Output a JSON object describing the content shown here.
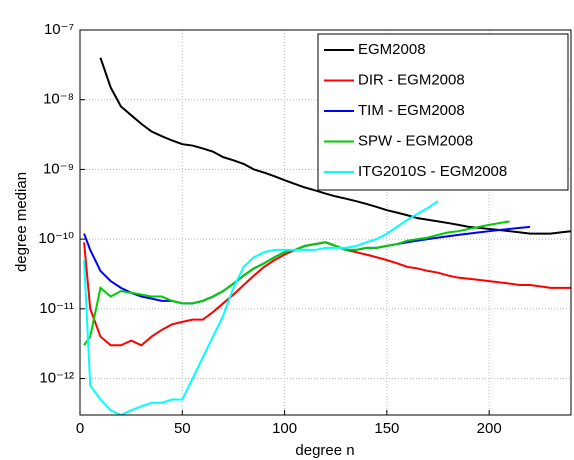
{
  "chart_data": {
    "type": "line",
    "xlabel": "degree n",
    "ylabel": "degree median",
    "yscale": "log",
    "grid": true,
    "legend": "upper right",
    "xlim": [
      0,
      240
    ],
    "xticks": [
      0,
      50,
      100,
      150,
      200
    ],
    "ylim": [
      3e-13,
      1e-07
    ],
    "yticks": [
      {
        "value": 1e-12,
        "label": "10⁻¹²"
      },
      {
        "value": 1e-11,
        "label": "10⁻¹¹"
      },
      {
        "value": 1e-10,
        "label": "10⁻¹⁰"
      },
      {
        "value": 1e-09,
        "label": "10⁻⁹"
      },
      {
        "value": 1e-08,
        "label": "10⁻⁸"
      },
      {
        "value": 1e-07,
        "label": "10⁻⁷"
      }
    ],
    "x": [
      2,
      5,
      10,
      15,
      20,
      25,
      30,
      35,
      40,
      45,
      50,
      55,
      60,
      65,
      70,
      75,
      80,
      85,
      90,
      95,
      100,
      105,
      110,
      115,
      120,
      125,
      130,
      135,
      140,
      145,
      150,
      155,
      160,
      165,
      170,
      175,
      180,
      185,
      190,
      195,
      200,
      205,
      210,
      215,
      220,
      225,
      230,
      235,
      240
    ],
    "series": [
      {
        "name": "EGM2008",
        "color": "#000000",
        "values": [
          null,
          null,
          4e-08,
          1.5e-08,
          8e-09,
          6e-09,
          4.5e-09,
          3.5e-09,
          3e-09,
          2.6e-09,
          2.3e-09,
          2.2e-09,
          2e-09,
          1.8e-09,
          1.5e-09,
          1.35e-09,
          1.2e-09,
          1e-09,
          9e-10,
          8e-10,
          7e-10,
          6.2e-10,
          5.5e-10,
          5e-10,
          4.5e-10,
          4.1e-10,
          3.8e-10,
          3.5e-10,
          3.2e-10,
          2.9e-10,
          2.6e-10,
          2.4e-10,
          2.2e-10,
          2e-10,
          1.9e-10,
          1.8e-10,
          1.7e-10,
          1.6e-10,
          1.5e-10,
          1.45e-10,
          1.4e-10,
          1.35e-10,
          1.3e-10,
          1.25e-10,
          1.2e-10,
          1.2e-10,
          1.2e-10,
          1.25e-10,
          1.3e-10
        ]
      },
      {
        "name": "DIR - EGM2008",
        "color": "#ff0000",
        "values": [
          9e-11,
          1e-11,
          4e-12,
          3e-12,
          3e-12,
          3.5e-12,
          3e-12,
          4e-12,
          5e-12,
          6e-12,
          6.5e-12,
          7e-12,
          7e-12,
          9e-12,
          1.2e-11,
          1.6e-11,
          2.2e-11,
          3e-11,
          4e-11,
          5e-11,
          6e-11,
          7e-11,
          8e-11,
          8.5e-11,
          9e-11,
          8e-11,
          7e-11,
          6.5e-11,
          6e-11,
          5.5e-11,
          5e-11,
          4.5e-11,
          4e-11,
          3.8e-11,
          3.5e-11,
          3.3e-11,
          3e-11,
          2.8e-11,
          2.7e-11,
          2.6e-11,
          2.5e-11,
          2.4e-11,
          2.3e-11,
          2.2e-11,
          2.2e-11,
          2.1e-11,
          2e-11,
          2e-11,
          2e-11
        ]
      },
      {
        "name": "TIM - EGM2008",
        "color": "#0000ff",
        "values": [
          1.2e-10,
          7e-11,
          3.5e-11,
          2.5e-11,
          2e-11,
          1.7e-11,
          1.5e-11,
          1.4e-11,
          1.3e-11,
          1.3e-11,
          1.2e-11,
          1.2e-11,
          1.3e-11,
          1.5e-11,
          1.8e-11,
          2.3e-11,
          3e-11,
          3.8e-11,
          4.5e-11,
          5.5e-11,
          6.5e-11,
          7e-11,
          8e-11,
          8.5e-11,
          9e-11,
          8e-11,
          7e-11,
          7e-11,
          7.5e-11,
          7.5e-11,
          8e-11,
          8.5e-11,
          9e-11,
          9.5e-11,
          1e-10,
          1.05e-10,
          1.1e-10,
          1.15e-10,
          1.2e-10,
          1.25e-10,
          1.3e-10,
          1.35e-10,
          1.4e-10,
          1.45e-10,
          1.5e-10,
          null,
          null,
          null,
          null
        ]
      },
      {
        "name": "SPW - EGM2008",
        "color": "#00cc00",
        "values": [
          3e-12,
          4e-12,
          2e-11,
          1.5e-11,
          1.8e-11,
          1.7e-11,
          1.6e-11,
          1.5e-11,
          1.5e-11,
          1.3e-11,
          1.2e-11,
          1.2e-11,
          1.3e-11,
          1.5e-11,
          1.8e-11,
          2.3e-11,
          3e-11,
          3.8e-11,
          4.5e-11,
          5.5e-11,
          6.5e-11,
          7e-11,
          8e-11,
          8.5e-11,
          9e-11,
          8e-11,
          7e-11,
          7e-11,
          7.5e-11,
          7.5e-11,
          8e-11,
          8.5e-11,
          9.5e-11,
          1e-10,
          1.05e-10,
          1.15e-10,
          1.25e-10,
          1.3e-10,
          1.4e-10,
          1.5e-10,
          1.6e-10,
          1.7e-10,
          1.8e-10,
          null,
          null,
          null,
          null,
          null,
          null
        ]
      },
      {
        "name": "ITG2010S - EGM2008",
        "color": "#00ffff",
        "values": [
          5e-11,
          8e-13,
          5e-13,
          3.5e-13,
          3e-13,
          3.5e-13,
          4e-13,
          4.5e-13,
          4.5e-13,
          5e-13,
          5e-13,
          1e-12,
          2e-12,
          4e-12,
          8e-12,
          2e-11,
          4e-11,
          5.5e-11,
          6.5e-11,
          7e-11,
          7e-11,
          7e-11,
          7e-11,
          7e-11,
          7.5e-11,
          7.5e-11,
          7.5e-11,
          8e-11,
          9e-11,
          1e-10,
          1.2e-10,
          1.5e-10,
          1.9e-10,
          2.3e-10,
          2.8e-10,
          3.5e-10,
          null,
          null,
          null,
          null,
          null,
          null,
          null,
          null,
          null,
          null,
          null,
          null,
          null
        ]
      }
    ]
  }
}
